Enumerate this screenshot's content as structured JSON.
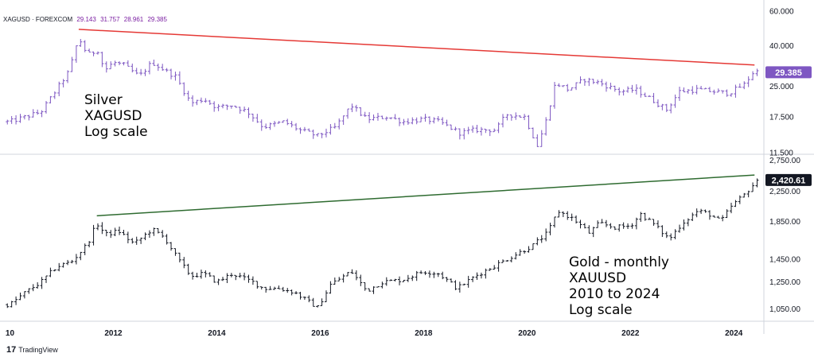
{
  "legend": {
    "symbol": "XAGUSD · FOREXCOM",
    "open": "29.143",
    "high": "31.757",
    "low": "28.961",
    "close": "29.385"
  },
  "annotations": {
    "silver": [
      "Silver",
      "XAGUSD",
      "Log scale"
    ],
    "gold": [
      "Gold - monthly",
      "XAUUSD",
      "2010 to 2024",
      "Log scale"
    ]
  },
  "branding": {
    "logo_mark": "17",
    "logo_text": "TradingView"
  },
  "colors": {
    "silver_bars": "#7e57c2",
    "gold_bars": "#131722",
    "silver_trendline": "#e53935",
    "gold_trendline": "#2e6b30",
    "silver_price_badge": "#7e57c2",
    "gold_price_badge": "#131722",
    "separator": "#d1d4dc"
  },
  "chart_data": [
    {
      "type": "ohlc",
      "name": "XAGUSD",
      "scale": "log",
      "ylim": [
        11.5,
        60
      ],
      "y_ticks": [
        "60.000",
        "40.000",
        "25.000",
        "17.500",
        "11.500"
      ],
      "y_tick_values": [
        60,
        40,
        25,
        17.5,
        11.5
      ],
      "last_price_label": "29.385",
      "last_price": 29.385,
      "x_tick_labels": [
        "10",
        "2012",
        "2014",
        "2016",
        "2018",
        "2020",
        "2022",
        "2024"
      ],
      "x_tick_years": [
        2010,
        2012,
        2014,
        2016,
        2018,
        2020,
        2022,
        2024
      ],
      "start_year": 2009.9,
      "end_year": 2024.55,
      "trendline": {
        "from": [
          2011.33,
          48.5
        ],
        "to": [
          2024.4,
          32.0
        ]
      },
      "close_path": [
        [
          2010.0,
          16.5
        ],
        [
          2010.6,
          18.5
        ],
        [
          2010.9,
          24
        ],
        [
          2011.15,
          30
        ],
        [
          2011.33,
          44
        ],
        [
          2011.5,
          36
        ],
        [
          2011.7,
          38
        ],
        [
          2011.83,
          30
        ],
        [
          2012.0,
          33
        ],
        [
          2012.2,
          32
        ],
        [
          2012.5,
          28
        ],
        [
          2012.75,
          33
        ],
        [
          2013.0,
          30
        ],
        [
          2013.2,
          28
        ],
        [
          2013.5,
          20.5
        ],
        [
          2013.75,
          21.5
        ],
        [
          2014.0,
          19.5
        ],
        [
          2014.3,
          20
        ],
        [
          2014.6,
          18.5
        ],
        [
          2014.9,
          15.5
        ],
        [
          2015.3,
          16.5
        ],
        [
          2015.6,
          15
        ],
        [
          2015.95,
          14
        ],
        [
          2016.3,
          15.5
        ],
        [
          2016.6,
          20
        ],
        [
          2016.9,
          17
        ],
        [
          2017.3,
          17.5
        ],
        [
          2017.6,
          16.5
        ],
        [
          2018.0,
          17
        ],
        [
          2018.3,
          16.5
        ],
        [
          2018.7,
          14.5
        ],
        [
          2019.0,
          15
        ],
        [
          2019.4,
          15
        ],
        [
          2019.6,
          18
        ],
        [
          2019.95,
          17.5
        ],
        [
          2020.2,
          12.5
        ],
        [
          2020.35,
          16
        ],
        [
          2020.55,
          26
        ],
        [
          2020.8,
          24
        ],
        [
          2021.1,
          27
        ],
        [
          2021.4,
          26
        ],
        [
          2021.8,
          23.5
        ],
        [
          2022.1,
          24
        ],
        [
          2022.4,
          21.5
        ],
        [
          2022.7,
          19
        ],
        [
          2022.95,
          23.5
        ],
        [
          2023.3,
          24
        ],
        [
          2023.6,
          23.5
        ],
        [
          2023.9,
          23
        ],
        [
          2024.2,
          25.5
        ],
        [
          2024.4,
          30
        ],
        [
          2024.5,
          29.4
        ]
      ]
    },
    {
      "type": "ohlc",
      "name": "XAUUSD",
      "scale": "log",
      "ylim": [
        980,
        2830
      ],
      "y_ticks": [
        "2,750.00",
        "2,250.00",
        "1,850.00",
        "1,450.00",
        "1,250.00",
        "1,050.00"
      ],
      "y_tick_values": [
        2750,
        2250,
        1850,
        1450,
        1250,
        1050
      ],
      "last_price_label": "2,420.61",
      "last_price": 2420.61,
      "x_tick_labels": [
        "10",
        "2012",
        "2014",
        "2016",
        "2018",
        "2020",
        "2022",
        "2024"
      ],
      "x_tick_years": [
        2010,
        2012,
        2014,
        2016,
        2018,
        2020,
        2022,
        2024
      ],
      "start_year": 2009.9,
      "end_year": 2024.55,
      "trendline": {
        "from": [
          2011.68,
          1920
        ],
        "to": [
          2024.4,
          2500
        ]
      },
      "close_path": [
        [
          2010.0,
          1080
        ],
        [
          2010.3,
          1170
        ],
        [
          2010.6,
          1250
        ],
        [
          2010.9,
          1380
        ],
        [
          2011.2,
          1430
        ],
        [
          2011.5,
          1600
        ],
        [
          2011.68,
          1830
        ],
        [
          2011.85,
          1700
        ],
        [
          2012.1,
          1740
        ],
        [
          2012.4,
          1600
        ],
        [
          2012.75,
          1760
        ],
        [
          2013.0,
          1660
        ],
        [
          2013.25,
          1450
        ],
        [
          2013.5,
          1300
        ],
        [
          2013.75,
          1320
        ],
        [
          2014.0,
          1250
        ],
        [
          2014.3,
          1320
        ],
        [
          2014.7,
          1250
        ],
        [
          2014.9,
          1200
        ],
        [
          2015.2,
          1200
        ],
        [
          2015.5,
          1170
        ],
        [
          2015.95,
          1060
        ],
        [
          2016.2,
          1230
        ],
        [
          2016.6,
          1340
        ],
        [
          2016.9,
          1180
        ],
        [
          2017.2,
          1250
        ],
        [
          2017.6,
          1270
        ],
        [
          2018.0,
          1340
        ],
        [
          2018.3,
          1320
        ],
        [
          2018.65,
          1200
        ],
        [
          2019.0,
          1300
        ],
        [
          2019.5,
          1420
        ],
        [
          2019.8,
          1500
        ],
        [
          2020.1,
          1580
        ],
        [
          2020.4,
          1720
        ],
        [
          2020.6,
          1980
        ],
        [
          2020.9,
          1880
        ],
        [
          2021.2,
          1720
        ],
        [
          2021.4,
          1830
        ],
        [
          2021.7,
          1780
        ],
        [
          2022.0,
          1800
        ],
        [
          2022.2,
          1940
        ],
        [
          2022.45,
          1820
        ],
        [
          2022.75,
          1650
        ],
        [
          2023.0,
          1830
        ],
        [
          2023.3,
          1980
        ],
        [
          2023.5,
          1950
        ],
        [
          2023.75,
          1850
        ],
        [
          2023.95,
          2040
        ],
        [
          2024.2,
          2200
        ],
        [
          2024.35,
          2330
        ],
        [
          2024.5,
          2420
        ]
      ]
    }
  ]
}
